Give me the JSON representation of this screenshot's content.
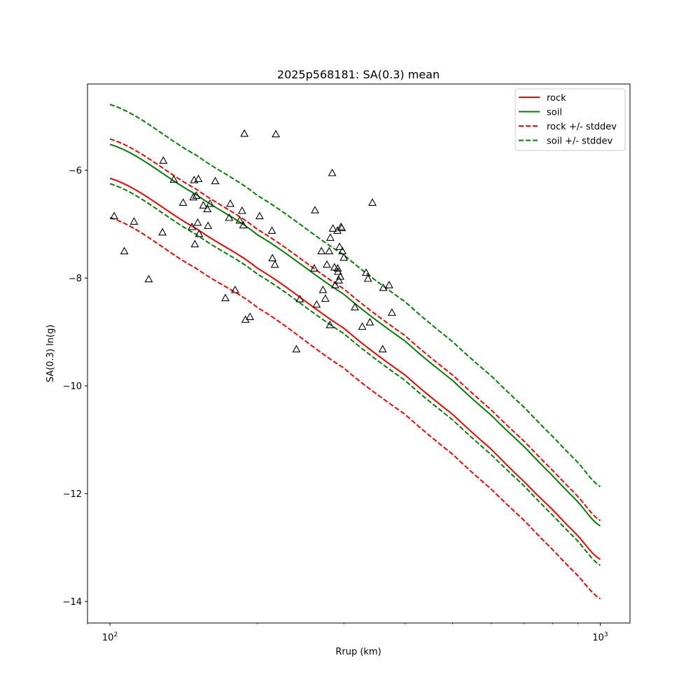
{
  "chart_data": {
    "type": "line",
    "title": "2025p568181: SA(0.3) mean",
    "xlabel": "Rrup (km)",
    "ylabel": "SA(0.3) ln(g)",
    "x_scale": "log",
    "xlim": [
      90,
      1150
    ],
    "ylim": [
      -14.4,
      -4.4
    ],
    "x_ticks": [
      {
        "value": 100,
        "label": "10",
        "exp": "2"
      },
      {
        "value": 1000,
        "label": "10",
        "exp": "3"
      }
    ],
    "y_ticks": [
      {
        "value": -6,
        "label": "−6"
      },
      {
        "value": -8,
        "label": "−8"
      },
      {
        "value": -10,
        "label": "−10"
      },
      {
        "value": -12,
        "label": "−12"
      },
      {
        "value": -14,
        "label": "−14"
      }
    ],
    "grid": false,
    "legend": {
      "position": "top-right",
      "entries": [
        {
          "label": "rock",
          "color": "#ff0000",
          "dash": "solid"
        },
        {
          "label": "soil",
          "color": "#008000",
          "dash": "solid"
        },
        {
          "label": "rock +/- stddev",
          "color": "#ff0000",
          "dash": "dashed"
        },
        {
          "label": "soil +/- stddev",
          "color": "#008000",
          "dash": "dashed"
        }
      ]
    },
    "x": [
      100,
      150,
      200,
      300,
      400,
      500,
      600,
      700,
      800,
      900,
      1000
    ],
    "series": [
      {
        "name": "rock",
        "color": "#ff0000",
        "dash": "solid",
        "values": [
          -6.15,
          -7.08,
          -7.82,
          -8.93,
          -9.8,
          -10.53,
          -11.18,
          -11.78,
          -12.3,
          -12.78,
          -13.22
        ]
      },
      {
        "name": "soil",
        "color": "#008000",
        "dash": "solid",
        "values": [
          -5.52,
          -6.45,
          -7.2,
          -8.3,
          -9.17,
          -9.9,
          -10.55,
          -11.13,
          -11.67,
          -12.15,
          -12.6
        ]
      },
      {
        "name": "rock +stddev",
        "color": "#ff0000",
        "dash": "dashed",
        "values": [
          -5.42,
          -6.35,
          -7.1,
          -8.2,
          -9.07,
          -9.8,
          -10.45,
          -11.03,
          -11.57,
          -12.05,
          -12.5
        ]
      },
      {
        "name": "rock -stddev",
        "color": "#ff0000",
        "dash": "dashed",
        "values": [
          -6.88,
          -7.82,
          -8.55,
          -9.67,
          -10.53,
          -11.27,
          -11.92,
          -12.5,
          -13.04,
          -13.52,
          -13.95
        ]
      },
      {
        "name": "soil +stddev",
        "color": "#008000",
        "dash": "dashed",
        "values": [
          -4.78,
          -5.72,
          -6.47,
          -7.57,
          -8.44,
          -9.18,
          -9.82,
          -10.4,
          -10.94,
          -11.42,
          -11.87
        ]
      },
      {
        "name": "soil -stddev",
        "color": "#008000",
        "dash": "dashed",
        "values": [
          -6.25,
          -7.19,
          -7.93,
          -9.03,
          -9.9,
          -10.63,
          -11.28,
          -11.86,
          -12.4,
          -12.88,
          -13.33
        ]
      }
    ],
    "observations": {
      "marker": "triangle-open",
      "color": "#000000",
      "points": [
        [
          102,
          -6.85
        ],
        [
          107,
          -7.5
        ],
        [
          112,
          -6.95
        ],
        [
          120,
          -8.02
        ],
        [
          128,
          -7.15
        ],
        [
          128.5,
          -5.82
        ],
        [
          135,
          -6.17
        ],
        [
          141,
          -6.6
        ],
        [
          147,
          -7.05
        ],
        [
          148,
          -6.5
        ],
        [
          148.5,
          -6.18
        ],
        [
          149,
          -7.37
        ],
        [
          150,
          -6.47
        ],
        [
          151,
          -6.97
        ],
        [
          151.5,
          -6.16
        ],
        [
          152,
          -7.18
        ],
        [
          155,
          -6.65
        ],
        [
          158,
          -6.72
        ],
        [
          158.5,
          -7.03
        ],
        [
          160,
          -6.62
        ],
        [
          164,
          -6.2
        ],
        [
          172,
          -8.37
        ],
        [
          175,
          -6.88
        ],
        [
          176,
          -6.62
        ],
        [
          180,
          -8.22
        ],
        [
          184,
          -6.93
        ],
        [
          186,
          -6.75
        ],
        [
          187,
          -7.02
        ],
        [
          188,
          -5.32
        ],
        [
          189,
          -8.77
        ],
        [
          193,
          -8.72
        ],
        [
          202,
          -6.85
        ],
        [
          214,
          -7.12
        ],
        [
          214.5,
          -7.63
        ],
        [
          217,
          -7.75
        ],
        [
          218,
          -5.33
        ],
        [
          240,
          -9.32
        ],
        [
          244,
          -8.39
        ],
        [
          261,
          -7.82
        ],
        [
          262,
          -6.74
        ],
        [
          264,
          -8.49
        ],
        [
          270,
          -7.5
        ],
        [
          272,
          -8.22
        ],
        [
          275,
          -8.38
        ],
        [
          277,
          -7.75
        ],
        [
          280,
          -7.5
        ],
        [
          281,
          -8.87
        ],
        [
          281.5,
          -7.25
        ],
        [
          284,
          -6.05
        ],
        [
          285,
          -7.08
        ],
        [
          287,
          -7.8
        ],
        [
          288,
          -8.13
        ],
        [
          291,
          -7.12
        ],
        [
          291.5,
          -7.82
        ],
        [
          292,
          -7.88
        ],
        [
          293,
          -8.04
        ],
        [
          294,
          -7.42
        ],
        [
          295,
          -7.97
        ],
        [
          296,
          -7.05
        ],
        [
          297,
          -7.07
        ],
        [
          298,
          -7.5
        ],
        [
          300,
          -7.62
        ],
        [
          316,
          -8.54
        ],
        [
          327,
          -8.9
        ],
        [
          333,
          -7.9
        ],
        [
          336,
          -8.01
        ],
        [
          339,
          -8.82
        ],
        [
          343,
          -6.6
        ],
        [
          360,
          -9.32
        ],
        [
          361,
          -8.18
        ],
        [
          371,
          -8.13
        ],
        [
          376,
          -8.64
        ]
      ]
    }
  }
}
